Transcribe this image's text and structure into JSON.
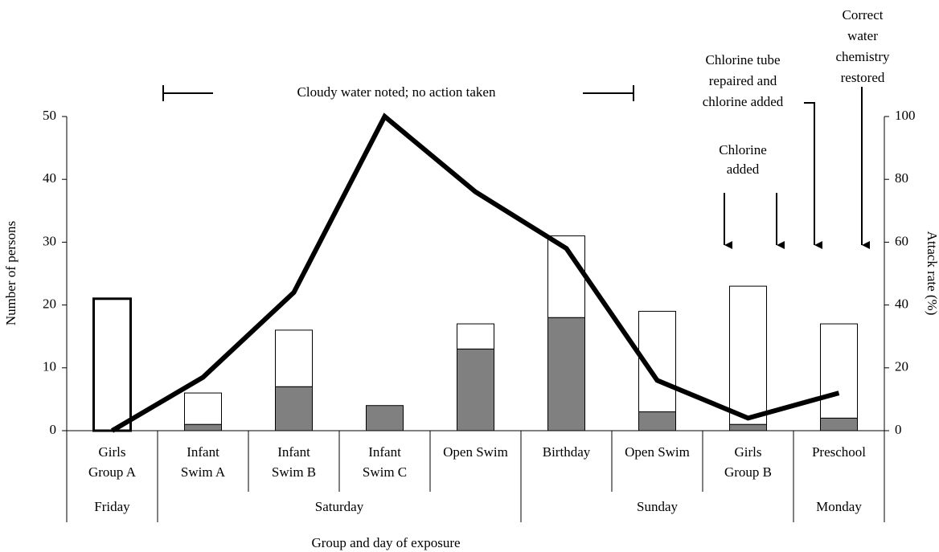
{
  "chart_data": {
    "type": "bar",
    "x_label": "Group and day of exposure",
    "y_label": "Number of persons",
    "y2_label": "Attack rate (%)",
    "categories": [
      [
        "Girls",
        "Group A"
      ],
      [
        "Infant",
        "Swim A"
      ],
      [
        "Infant",
        "Swim B"
      ],
      [
        "Infant",
        "Swim C"
      ],
      [
        "Open Swim"
      ],
      [
        "Birthday"
      ],
      [
        "Open Swim"
      ],
      [
        "Girls",
        "Group B"
      ],
      [
        "Preschool"
      ]
    ],
    "groups": [
      {
        "label": "Friday",
        "count": 1
      },
      {
        "label": "Saturday",
        "count": 4
      },
      {
        "label": "Sunday",
        "count": 3
      },
      {
        "label": "Monday",
        "count": 1
      }
    ],
    "stacked": true,
    "series": [
      {
        "color": "#808080",
        "values": [
          0,
          1,
          7,
          4,
          13,
          18,
          3,
          1,
          2
        ]
      },
      {
        "color": "#ffffff",
        "values": [
          21,
          5,
          9,
          0,
          4,
          13,
          16,
          22,
          15
        ]
      },
      {
        "type": "line",
        "axis": "y2",
        "color": "#000000",
        "values": [
          0,
          17,
          44,
          100,
          76,
          58,
          16,
          4,
          12
        ]
      }
    ],
    "ylim": [
      0,
      50
    ],
    "yticks": [
      0,
      10,
      20,
      30,
      40,
      50
    ],
    "y2lim": [
      0,
      100
    ],
    "y2ticks": [
      0,
      20,
      40,
      60,
      80,
      100
    ],
    "annotations": {
      "cloudy": [
        "Cloudy water noted; no action taken"
      ],
      "chlorine": [
        "Chlorine",
        "added"
      ],
      "tube": [
        "Chlorine tube",
        "repaired and",
        "chlorine added"
      ],
      "restored": [
        "Correct",
        "water",
        "chemistry",
        "restored"
      ]
    }
  }
}
